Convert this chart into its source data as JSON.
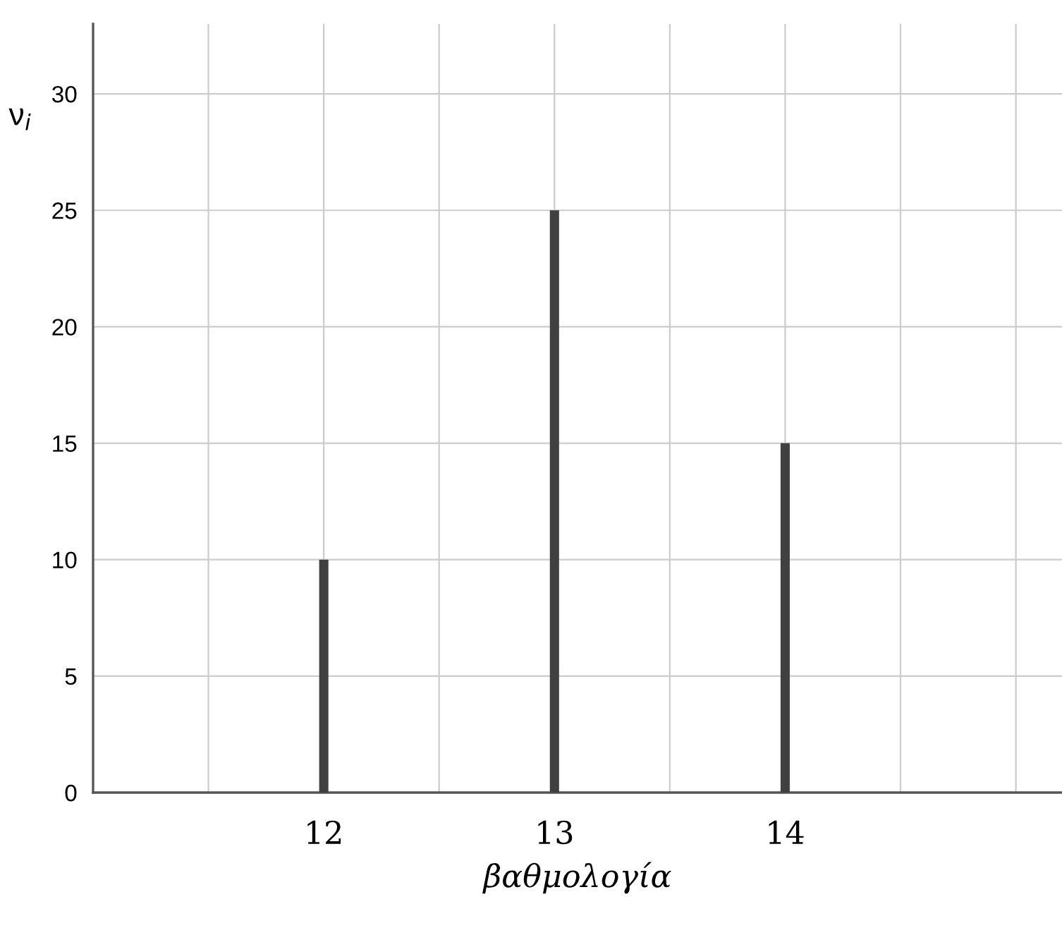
{
  "chart_data": {
    "type": "bar",
    "x": [
      12,
      13,
      14
    ],
    "values": [
      10,
      25,
      15
    ],
    "color": "#404040",
    "xlim": [
      11,
      15.2
    ],
    "xticks": [
      {
        "value": 11.5,
        "label": null
      },
      12,
      {
        "value": 12.5,
        "label": null
      },
      13,
      {
        "value": 13.5,
        "label": null
      },
      14,
      {
        "value": 14.5,
        "label": null
      },
      {
        "value": 15,
        "label": null
      }
    ],
    "ylim": [
      0,
      33
    ],
    "yticks": [
      0,
      5,
      10,
      15,
      20,
      25,
      30
    ],
    "xlabel": "βαθμολογία",
    "ylabel": "ν$_{i}$",
    "grid": true,
    "legend": false
  }
}
